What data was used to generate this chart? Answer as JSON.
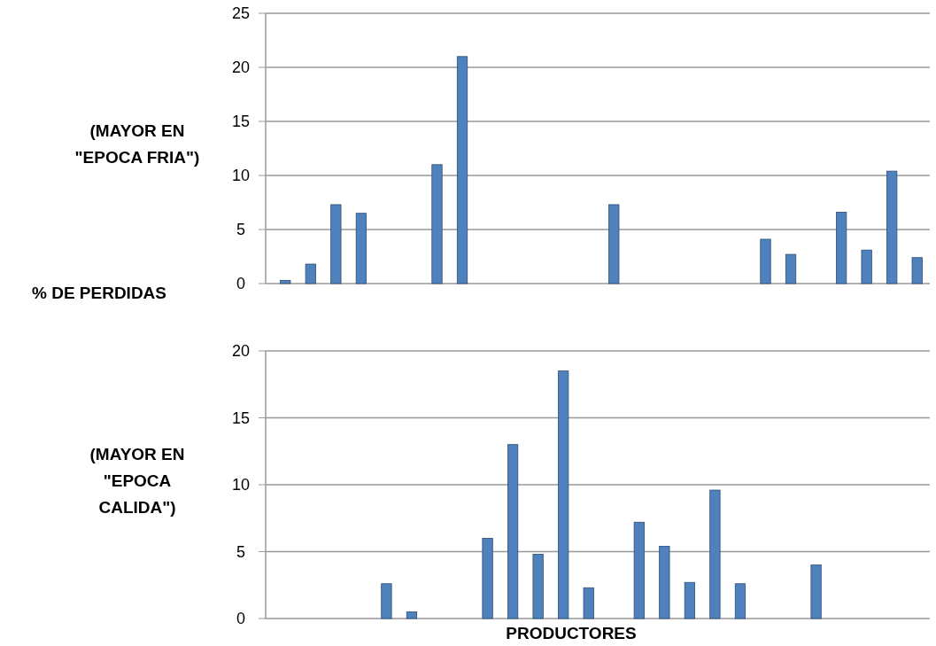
{
  "chart_data": [
    {
      "type": "bar",
      "ylabel": "(MAYOR  EN\n\"EPOCA FRIA\")",
      "annotations": [
        "% DE PERDIDAS"
      ],
      "categories": [
        null,
        null,
        null,
        null,
        null,
        null,
        null,
        null,
        null,
        null,
        null,
        null,
        null,
        null,
        null,
        null,
        null,
        null,
        null,
        null,
        null,
        null,
        null,
        null,
        null,
        null
      ],
      "values": [
        0.3,
        1.8,
        7.3,
        6.5,
        0,
        0,
        11,
        21,
        0,
        0,
        0,
        0,
        0,
        7.3,
        0,
        0,
        0,
        0,
        0,
        4.1,
        2.7,
        0,
        6.6,
        3.1,
        10.4,
        2.4
      ],
      "color": "#4f81bd",
      "ylim": [
        0,
        25
      ],
      "yticks": [
        0,
        5,
        10,
        15,
        20,
        25
      ],
      "grid": "y"
    },
    {
      "type": "bar",
      "ylabel": "(MAYOR EN\n\"EPOCA\nCALIDA\")",
      "xlabel": "PRODUCTORES",
      "categories": [
        null,
        null,
        null,
        null,
        null,
        null,
        null,
        null,
        null,
        null,
        null,
        null,
        null,
        null,
        null,
        null,
        null,
        null,
        null,
        null,
        null,
        null,
        null,
        null,
        null,
        null
      ],
      "values": [
        0,
        0,
        0,
        0,
        2.6,
        0.5,
        0,
        0,
        6,
        13,
        4.8,
        18.5,
        2.3,
        0,
        7.2,
        5.4,
        2.7,
        9.6,
        2.6,
        0,
        0,
        4,
        0,
        0,
        0,
        0
      ],
      "color": "#4f81bd",
      "ylim": [
        0,
        20
      ],
      "yticks": [
        0,
        5,
        10,
        15,
        20
      ],
      "grid": "y"
    }
  ]
}
